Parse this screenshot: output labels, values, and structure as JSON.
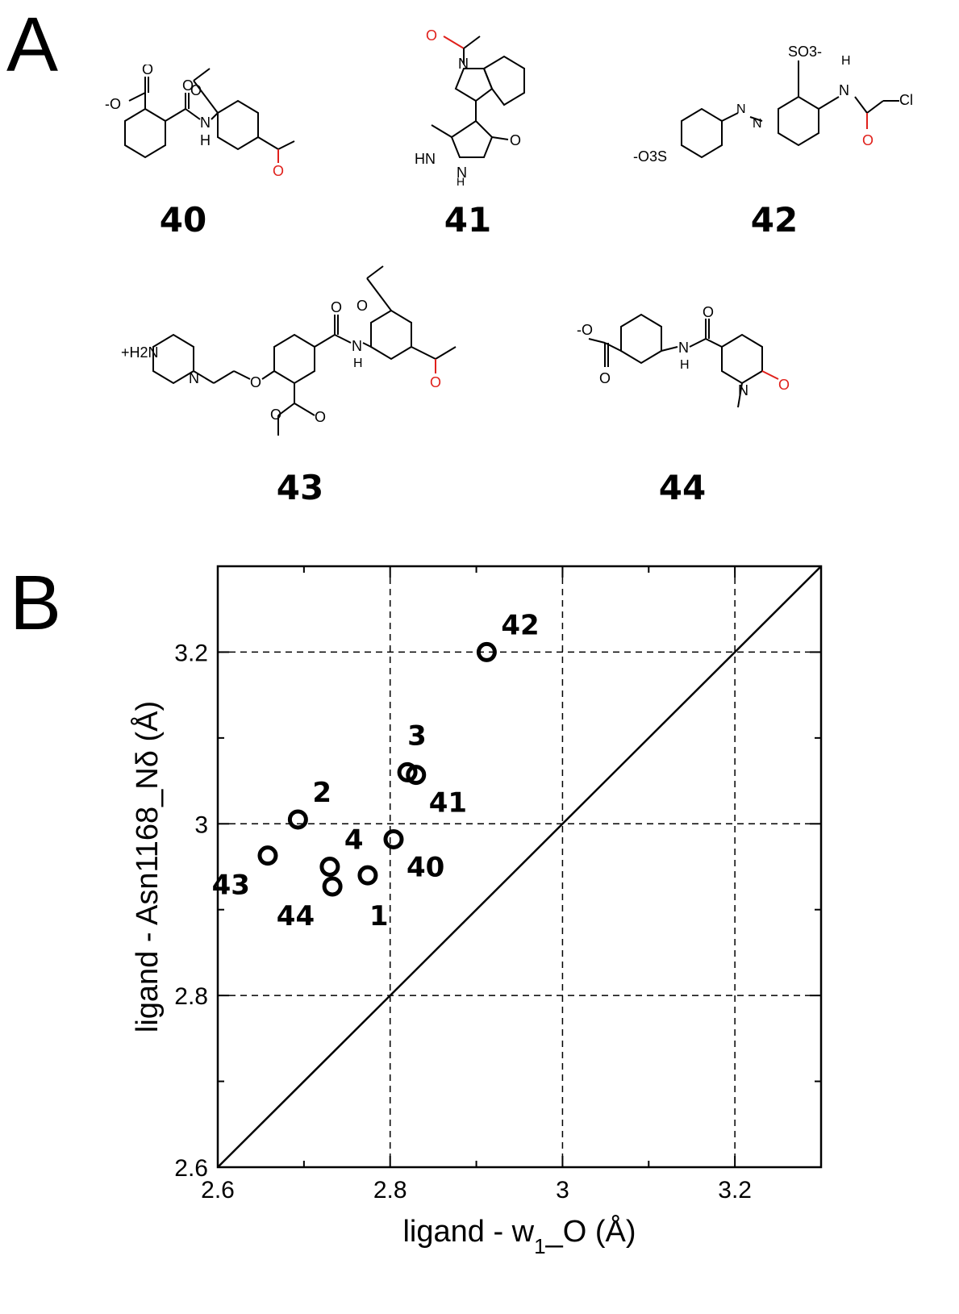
{
  "panels": {
    "a_label": "A",
    "b_label": "B"
  },
  "compounds": [
    {
      "id": "40",
      "label": "40"
    },
    {
      "id": "41",
      "label": "41"
    },
    {
      "id": "42",
      "label": "42"
    },
    {
      "id": "43",
      "label": "43"
    },
    {
      "id": "44",
      "label": "44"
    }
  ],
  "structure_text": {
    "s40": {
      "carboxylate_o": "O",
      "carboxylate_minus": "-O",
      "amide_o": "O",
      "ethoxy_o": "O",
      "nh": "H",
      "nh_n": "N",
      "acetyl_o": "O"
    },
    "s41": {
      "acetyl_o": "O",
      "indole_n": "N",
      "hn": "HN",
      "n": "N",
      "h": "H",
      "ketone_o": "O"
    },
    "s42": {
      "so3_top": "SO3-",
      "nh": "N",
      "h": "H",
      "cl": "Cl",
      "amide_o": "O",
      "so3_left": "-O3S",
      "azo_n1": "N",
      "azo_n2": "N"
    },
    "s43": {
      "h2n": "+H2N",
      "n": "N",
      "ether_o": "O",
      "ethoxy_o": "O",
      "amide_o": "O",
      "nh": "N",
      "h": "H",
      "ester_o1": "O",
      "ester_o2": "O",
      "acetyl_o": "O"
    },
    "s44": {
      "carboxylate_minus": "-O",
      "carboxylate_o": "O",
      "amide_o": "O",
      "nh": "N",
      "h": "H",
      "ring_n": "N",
      "ring_o": "O"
    }
  },
  "colors": {
    "highlight": "#e0201b",
    "ink": "#000000"
  },
  "chart_data": {
    "type": "scatter",
    "xlabel_main": "ligand - w",
    "xlabel_sub": "1",
    "xlabel_tail": "_O (Å)",
    "ylabel": "ligand - Asn1168_Nδ (Å)",
    "xlim": [
      2.6,
      3.3
    ],
    "ylim": [
      2.6,
      3.3
    ],
    "xticks": [
      2.6,
      2.8,
      3,
      3.2
    ],
    "yticks": [
      2.6,
      2.8,
      3,
      3.2
    ],
    "xtick_labels": [
      "2.6",
      "2.8",
      "3",
      "3.2"
    ],
    "ytick_labels": [
      "2.6",
      "2.8",
      "3",
      "3.2"
    ],
    "grid": "dashed at major ticks",
    "diagonal": "y = x",
    "points": [
      {
        "label": "42",
        "x": 2.912,
        "y": 3.2,
        "label_pos": "upper-right"
      },
      {
        "label": "3",
        "x": 2.82,
        "y": 3.06,
        "label_pos": "above"
      },
      {
        "label": "41",
        "x": 2.83,
        "y": 3.057,
        "label_pos": "lower-right"
      },
      {
        "label": "2",
        "x": 2.693,
        "y": 3.005,
        "label_pos": "upper-right"
      },
      {
        "label": "40",
        "x": 2.804,
        "y": 2.982,
        "label_pos": "lower-right"
      },
      {
        "label": "4",
        "x": 2.73,
        "y": 2.95,
        "label_pos": "upper-right"
      },
      {
        "label": "43",
        "x": 2.658,
        "y": 2.963,
        "label_pos": "lower-left"
      },
      {
        "label": "44",
        "x": 2.733,
        "y": 2.927,
        "label_pos": "lower-left"
      },
      {
        "label": "1",
        "x": 2.774,
        "y": 2.94,
        "label_pos": "below-right"
      }
    ]
  }
}
